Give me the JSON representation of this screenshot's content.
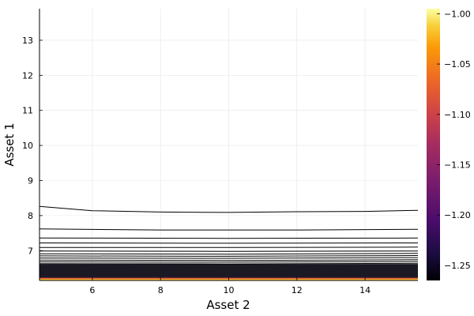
{
  "chart_data": {
    "type": "contour",
    "xlabel": "Asset 2",
    "ylabel": "Asset 1",
    "xlim": [
      4.45,
      15.55
    ],
    "ylim": [
      6.15,
      13.9
    ],
    "xticks": [
      6,
      8,
      10,
      12,
      14
    ],
    "yticks": [
      7,
      8,
      9,
      10,
      11,
      12,
      13
    ],
    "grid": true,
    "colorbar": {
      "range": [
        -1.265,
        -0.995
      ],
      "ticks": [
        -1.0,
        -1.05,
        -1.1,
        -1.15,
        -1.2,
        -1.25
      ],
      "tick_labels": [
        "−1.00",
        "−1.05",
        "−1.10",
        "−1.15",
        "−1.20",
        "−1.25"
      ],
      "colormap": "inferno"
    },
    "contour_lines": [
      {
        "x": [
          4.45,
          6,
          8,
          10,
          12,
          14,
          15.55
        ],
        "y": [
          8.26,
          8.14,
          8.1,
          8.09,
          8.11,
          8.12,
          8.15
        ]
      },
      {
        "x": [
          4.45,
          8,
          12,
          15.55
        ],
        "y": [
          7.62,
          7.59,
          7.59,
          7.61
        ]
      },
      {
        "x": [
          4.45,
          10,
          15.55
        ],
        "y": [
          7.36,
          7.35,
          7.36
        ]
      },
      {
        "x": [
          4.45,
          10,
          15.55
        ],
        "y": [
          7.22,
          7.21,
          7.22
        ]
      },
      {
        "x": [
          4.45,
          10,
          15.55
        ],
        "y": [
          7.09,
          7.09,
          7.1
        ]
      },
      {
        "x": [
          4.45,
          10,
          15.55
        ],
        "y": [
          6.99,
          6.98,
          6.99
        ]
      },
      {
        "x": [
          4.45,
          10,
          15.55
        ],
        "y": [
          6.91,
          6.9,
          6.92
        ]
      },
      {
        "x": [
          4.45,
          10,
          15.55
        ],
        "y": [
          6.85,
          6.84,
          6.86
        ]
      },
      {
        "x": [
          4.45,
          10,
          15.55
        ],
        "y": [
          6.79,
          6.78,
          6.8
        ]
      },
      {
        "x": [
          4.45,
          10,
          15.55
        ],
        "y": [
          6.73,
          6.72,
          6.74
        ]
      },
      {
        "x": [
          4.45,
          10,
          15.55
        ],
        "y": [
          6.68,
          6.67,
          6.69
        ]
      },
      {
        "x": [
          4.45,
          10,
          15.55
        ],
        "y": [
          6.63,
          6.62,
          6.64
        ]
      }
    ],
    "dense_band": {
      "y_range": [
        6.2,
        6.62
      ],
      "color": "#1b1a24"
    },
    "colored_bands": [
      {
        "y": 6.21,
        "color": "#bc3754"
      },
      {
        "y": 6.19,
        "color": "#f1701e"
      },
      {
        "y": 6.17,
        "color": "#f8c932"
      }
    ]
  }
}
